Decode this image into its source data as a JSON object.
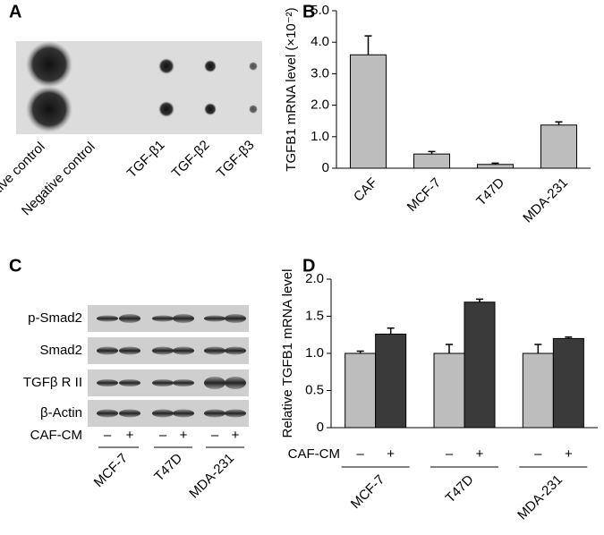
{
  "panel_labels": [
    "A",
    "B",
    "C",
    "D"
  ],
  "dot_blot": {
    "labels": [
      "Positive control",
      "Negative control",
      "TGF-β1",
      "TGF-β2",
      "TGF-β3"
    ]
  },
  "western_blot": {
    "rows": [
      "p-Smad2",
      "Smad2",
      "TGFβ R II",
      "β-Actin"
    ],
    "treatment_label": "CAF-CM",
    "signs": [
      "–",
      "+"
    ],
    "groups": [
      "MCF-7",
      "T47D",
      "MDA-231"
    ]
  },
  "chart_data": [
    {
      "type": "bar",
      "y_label": "TGFB1 mRNA level (×10⁻²)",
      "categories": [
        "CAF",
        "MCF-7",
        "T47D",
        "MDA-231"
      ],
      "values": [
        3.6,
        0.45,
        0.12,
        1.37
      ],
      "errors": [
        0.6,
        0.08,
        0.04,
        0.1
      ],
      "color": "#bdbdbd",
      "ylim": [
        0,
        5
      ],
      "yticks": [
        0,
        {
          "value": 1,
          "label": "1.0"
        },
        {
          "value": 2,
          "label": "2.0"
        },
        {
          "value": 3,
          "label": "3.0"
        },
        {
          "value": 4,
          "label": "4.0"
        },
        {
          "value": 5,
          "label": "5.0"
        }
      ]
    },
    {
      "type": "bar",
      "y_label": "Relative TGFB1 mRNA level",
      "treatment_label": "CAF-CM",
      "categories": [
        "MCF-7",
        "T47D",
        "MDA-231"
      ],
      "series": [
        {
          "name": "–",
          "color": "#bdbdbd",
          "values": [
            1.0,
            1.0,
            1.0
          ],
          "errors": [
            0.03,
            0.12,
            0.12
          ]
        },
        {
          "name": "+",
          "color": "#3a3a3a",
          "values": [
            1.26,
            1.69,
            1.2
          ],
          "errors": [
            0.08,
            0.04,
            0.02
          ]
        }
      ],
      "ylim": [
        0,
        2
      ],
      "yticks": [
        0,
        0.5,
        {
          "value": 1,
          "label": "1.0"
        },
        1.5,
        {
          "value": 2,
          "label": "2.0"
        }
      ]
    }
  ]
}
